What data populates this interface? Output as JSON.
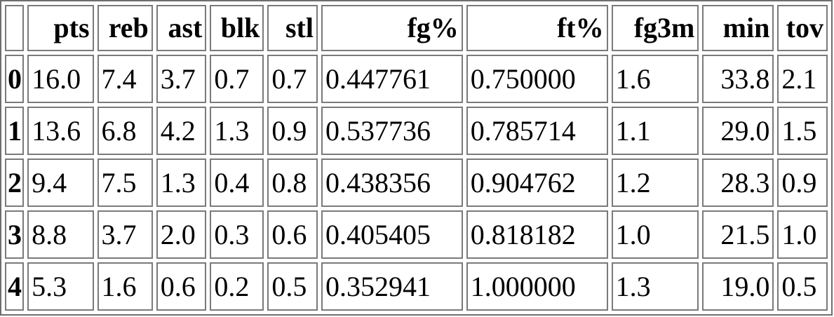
{
  "table": {
    "columns": [
      "",
      "pts",
      "reb",
      "ast",
      "blk",
      "stl",
      "fg%",
      "ft%",
      "fg3m",
      "min",
      "tov"
    ],
    "rows": [
      {
        "index": "0",
        "cells": [
          "16.0",
          "7.4",
          "3.7",
          "0.7",
          "0.7",
          "0.447761",
          "0.750000",
          "1.6",
          "33.8",
          "2.1"
        ]
      },
      {
        "index": "1",
        "cells": [
          "13.6",
          "6.8",
          "4.2",
          "1.3",
          "0.9",
          "0.537736",
          "0.785714",
          "1.1",
          "29.0",
          "1.5"
        ]
      },
      {
        "index": "2",
        "cells": [
          "9.4",
          "7.5",
          "1.3",
          "0.4",
          "0.8",
          "0.438356",
          "0.904762",
          "1.2",
          "28.3",
          "0.9"
        ]
      },
      {
        "index": "3",
        "cells": [
          "8.8",
          "3.7",
          "2.0",
          "0.3",
          "0.6",
          "0.405405",
          "0.818182",
          "1.0",
          "21.5",
          "1.0"
        ]
      },
      {
        "index": "4",
        "cells": [
          "5.3",
          "1.6",
          "0.6",
          "0.2",
          "0.5",
          "0.352941",
          "1.000000",
          "1.3",
          "19.0",
          "0.5"
        ]
      }
    ]
  }
}
